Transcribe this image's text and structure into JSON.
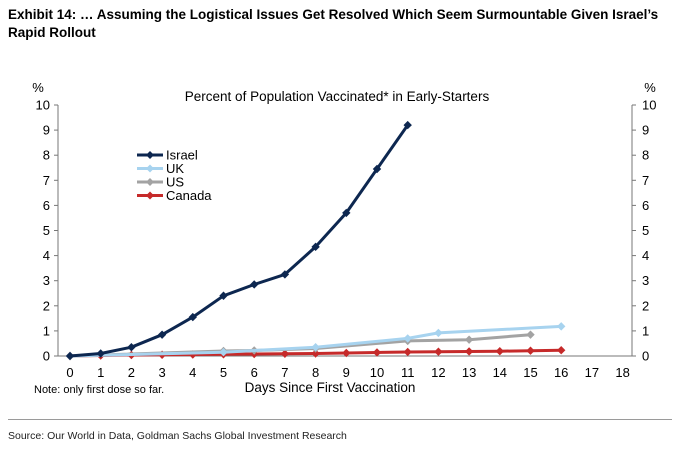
{
  "exhibit_title": "Exhibit 14: … Assuming the Logistical Issues Get Resolved Which Seem Surmountable Given Israel’s Rapid Rollout",
  "note": "Note: only first dose so far.",
  "source": "Source: Our World in Data, Goldman Sachs Global Investment Research",
  "chart_data": {
    "type": "line",
    "title": "Percent of Population Vaccinated* in Early-Starters",
    "xlabel": "Days Since First Vaccination",
    "ylabel_left": "%",
    "ylabel_right": "%",
    "xlim": [
      0,
      18
    ],
    "ylim": [
      0,
      10
    ],
    "x_ticks": [
      0,
      1,
      2,
      3,
      4,
      5,
      6,
      7,
      8,
      9,
      10,
      11,
      12,
      13,
      14,
      15,
      16,
      17,
      18
    ],
    "y_ticks": [
      0,
      1,
      2,
      3,
      4,
      5,
      6,
      7,
      8,
      9,
      10
    ],
    "legend_position": "upper-left",
    "series": [
      {
        "name": "Israel",
        "color": "#0d2750",
        "marker": "diamond",
        "x": [
          0,
          1,
          2,
          3,
          4,
          5,
          6,
          7,
          8,
          9,
          10,
          11
        ],
        "values": [
          0.0,
          0.1,
          0.35,
          0.85,
          1.55,
          2.4,
          2.85,
          3.25,
          4.35,
          5.7,
          7.45,
          9.2
        ]
      },
      {
        "name": "UK",
        "color": "#a7d3ef",
        "marker": "diamond",
        "x": [
          0,
          5,
          8,
          11,
          12,
          16
        ],
        "values": [
          0.0,
          0.15,
          0.35,
          0.7,
          0.92,
          1.18
        ]
      },
      {
        "name": "US",
        "color": "#a3a3a3",
        "marker": "diamond",
        "x": [
          0,
          5,
          6,
          8,
          11,
          13,
          15
        ],
        "values": [
          0.0,
          0.2,
          0.22,
          0.3,
          0.6,
          0.65,
          0.85
        ]
      },
      {
        "name": "Canada",
        "color": "#c62a2a",
        "marker": "diamond",
        "x": [
          0,
          1,
          2,
          3,
          4,
          5,
          6,
          7,
          8,
          9,
          10,
          11,
          12,
          13,
          14,
          15,
          16
        ],
        "values": [
          0.0,
          0.02,
          0.04,
          0.05,
          0.06,
          0.07,
          0.08,
          0.09,
          0.1,
          0.12,
          0.14,
          0.16,
          0.17,
          0.18,
          0.19,
          0.21,
          0.23
        ]
      }
    ]
  }
}
